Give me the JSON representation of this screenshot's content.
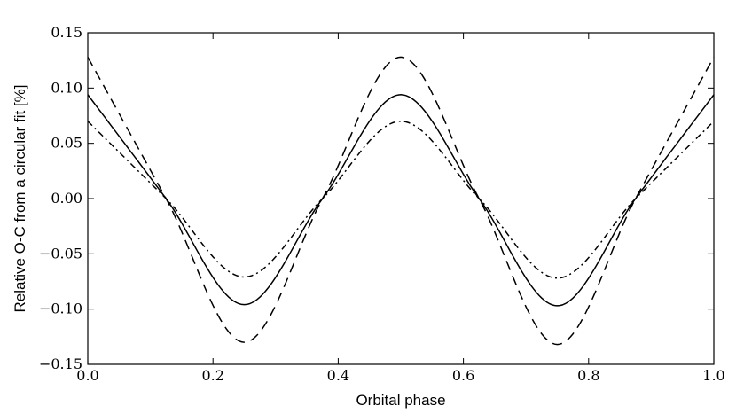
{
  "chart_data": {
    "type": "line",
    "xlabel": "Orbital phase",
    "ylabel": "Relative O-C from a circular fit [%]",
    "xlim": [
      0.0,
      1.0
    ],
    "ylim": [
      -0.15,
      0.15
    ],
    "xticks": [
      0.0,
      0.2,
      0.4,
      0.6,
      0.8,
      1.0
    ],
    "xtick_labels": [
      "0.0",
      "0.2",
      "0.4",
      "0.6",
      "0.8",
      "1.0"
    ],
    "yticks": [
      0.15,
      0.1,
      0.05,
      0.0,
      -0.05,
      -0.1,
      -0.15
    ],
    "ytick_labels": [
      "0.15",
      "0.10",
      "0.05",
      "0.00",
      "−0.05",
      "−0.10",
      "−0.15"
    ],
    "grid": false,
    "series": [
      {
        "style": "dashed",
        "x": [
          0.0,
          0.125,
          0.25,
          0.375,
          0.5,
          0.625,
          0.75,
          0.875,
          1.0
        ],
        "y": [
          0.128,
          0.0,
          -0.13,
          0.0,
          0.128,
          0.0,
          -0.132,
          0.0,
          0.128
        ]
      },
      {
        "style": "solid",
        "x": [
          0.0,
          0.125,
          0.25,
          0.375,
          0.5,
          0.625,
          0.75,
          0.875,
          1.0
        ],
        "y": [
          0.094,
          0.0,
          -0.096,
          0.0,
          0.094,
          0.0,
          -0.097,
          0.0,
          0.094
        ]
      },
      {
        "style": "dashdot",
        "x": [
          0.0,
          0.125,
          0.25,
          0.375,
          0.5,
          0.625,
          0.75,
          0.875,
          1.0
        ],
        "y": [
          0.07,
          0.0,
          -0.071,
          0.0,
          0.07,
          0.0,
          -0.072,
          0.0,
          0.07
        ]
      }
    ]
  }
}
